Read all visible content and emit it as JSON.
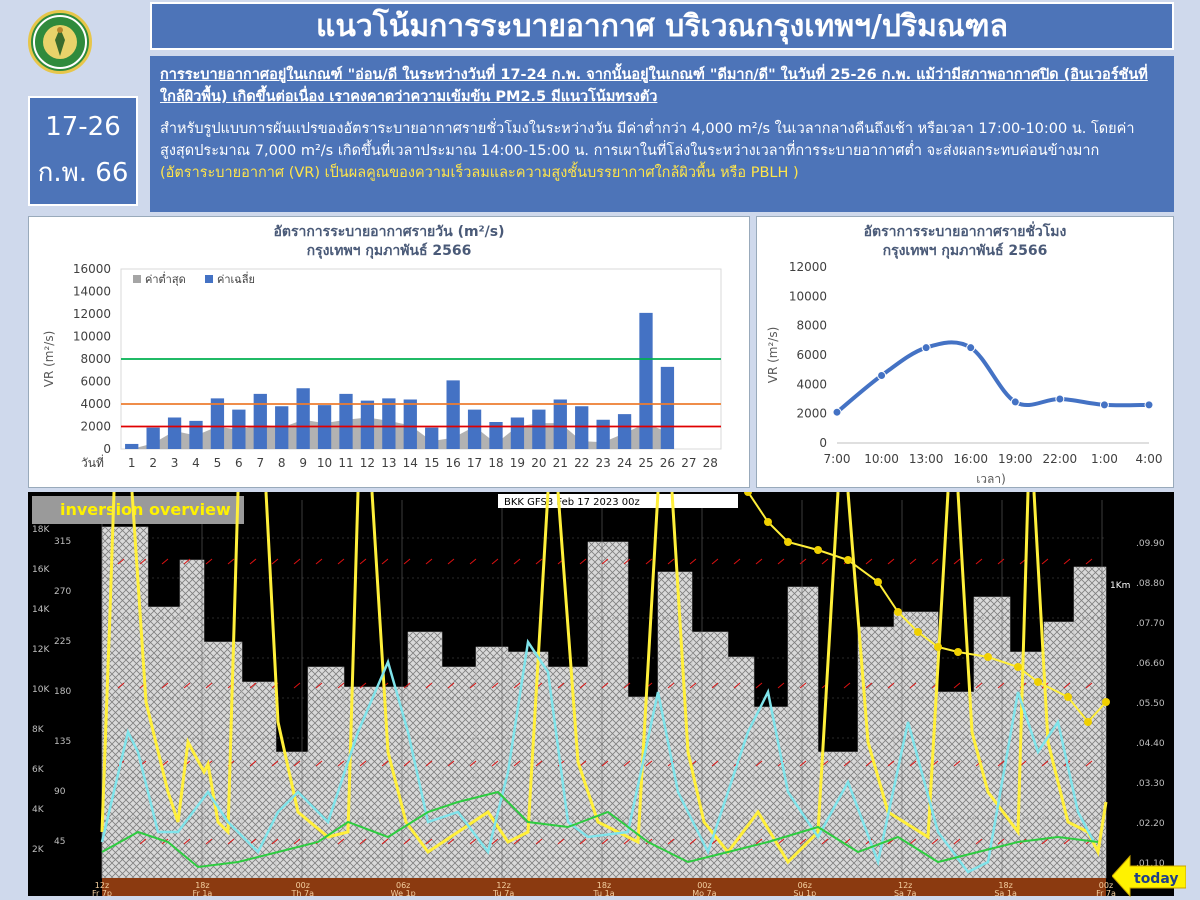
{
  "header": {
    "title": "แนวโน้มการระบายอากาศ บริเวณกรุงเทพฯ/ปริมณฑล",
    "date_line1": "17-26",
    "date_line2": "ก.พ. 66",
    "logo_text": "กรมอุตุนิยมวิทยา METEOROLOGICAL DEPARTMENT"
  },
  "description": {
    "headline": "การระบายอากาศอยู่ในเกณฑ์ \"อ่อน/ดี ในระหว่างวันที่ 17-24 ก.พ. จากนั้นอยู่ในเกณฑ์ \"ดีมาก/ดี\" ในวันที่ 25-26 ก.พ. แม้ว่ามีสภาพอากาศปิด (อินเวอร์ชันที่ใกล้ผิวพื้น) เกิดขึ้นต่อเนื่อง เราคงคาดว่าความเข้มข้น PM2.5 มีแนวโน้มทรงตัว",
    "body": "สำหรับรูปแบบการผันแปรของอัตราระบายอากาศรายชั่วโมงในระหว่างวัน มีค่าต่ำกว่า 4,000 m²/s ในเวลากลางคืนถึงเช้า หรือเวลา 17:00-10:00 น. โดยค่าสูงสุดประมาณ 7,000 m²/s เกิดขึ้นที่เวลาประมาณ 14:00-15:00 น. การเผาในที่โล่งในระหว่างเวลาที่การระบายอากาศต่ำ จะส่งผลกระทบค่อนข้างมาก",
    "note": "(อัตราระบายอากาศ (VR) เป็นผลคูณของความเร็วลมและความสูงชั้นบรรยากาศใกล้ผิวพื้น หรือ PBLH )"
  },
  "colors": {
    "header_blue": "#4d74b8",
    "bar_avg": "#4472c4",
    "bar_min": "#a5a5a5",
    "line_green": "#00b050",
    "line_orange": "#ed7d31",
    "line_red": "#e00000",
    "line_hourly": "#4472c4",
    "inv_yellow": "#ffef3a",
    "inv_cyan": "#7fe3ea"
  },
  "chart_data": [
    {
      "type": "bar",
      "title": "อัตราการระบายอากาศรายวัน (m²/s)",
      "subtitle": "กรุงเทพฯ กุมภาพันธ์ 2566",
      "ylabel": "VR (m²/s)",
      "xprefix": "วันที่",
      "ylim": [
        0,
        16000
      ],
      "yticks": [
        0,
        2000,
        4000,
        6000,
        8000,
        10000,
        12000,
        14000,
        16000
      ],
      "categories": [
        "1",
        "2",
        "3",
        "4",
        "5",
        "6",
        "7",
        "8",
        "9",
        "10",
        "11",
        "12",
        "13",
        "14",
        "15",
        "16",
        "17",
        "18",
        "19",
        "20",
        "21",
        "22",
        "23",
        "24",
        "25",
        "26",
        "27",
        "28"
      ],
      "series": [
        {
          "name": "ค่าต่ำสุด",
          "type": "area",
          "values": [
            0,
            500,
            1600,
            1200,
            2000,
            1700,
            2200,
            1900,
            2600,
            2300,
            2600,
            2800,
            2500,
            2100,
            700,
            1000,
            2000,
            500,
            2000,
            2300,
            2300,
            700,
            600,
            1400,
            2300,
            1500,
            null,
            null
          ]
        },
        {
          "name": "ค่าเฉลี่ย",
          "type": "bar",
          "values": [
            450,
            1900,
            2800,
            2500,
            4500,
            3500,
            4900,
            3800,
            5400,
            3900,
            4900,
            4300,
            4500,
            4400,
            1900,
            6100,
            3500,
            2400,
            2800,
            3500,
            4400,
            3800,
            2600,
            3100,
            12100,
            7300,
            null,
            null
          ]
        }
      ],
      "reference_lines": [
        {
          "value": 8000,
          "color": "#00b050"
        },
        {
          "value": 4000,
          "color": "#ed7d31"
        },
        {
          "value": 2000,
          "color": "#e00000"
        }
      ],
      "legend": "top-left",
      "grid": false
    },
    {
      "type": "line",
      "title": "อัตราการระบายอากาศรายชั่วโมง",
      "subtitle": "กรุงเทพฯ กุมภาพันธ์ 2566",
      "ylabel": "VR (m²/s)",
      "xlabel": "เวลา)",
      "ylim": [
        0,
        12000
      ],
      "yticks": [
        0,
        2000,
        4000,
        6000,
        8000,
        10000,
        12000
      ],
      "x": [
        "7:00",
        "10:00",
        "13:00",
        "16:00",
        "19:00",
        "22:00",
        "1:00",
        "4:00"
      ],
      "series": [
        {
          "values": [
            2100,
            4600,
            6500,
            6500,
            2800,
            3000,
            2600,
            2600
          ]
        }
      ],
      "grid": false
    },
    {
      "type": "line",
      "title": "inversion overview",
      "header_text": "BKK GFS3 Feb 17 2023 00z",
      "left_axis_k": [
        "18K",
        "16K",
        "14K",
        "12K",
        "10K",
        "8K",
        "6K",
        "4K",
        "2K"
      ],
      "left_axis_deg": [
        "315",
        "270",
        "225",
        "180",
        "135",
        "90",
        "45"
      ],
      "right_axis": [
        ".09.90",
        ".08.80",
        ".07.70",
        ".06.60",
        ".05.50",
        ".04.40",
        ".03.30",
        ".02.20",
        ".01.10"
      ],
      "right_label": "1Km",
      "time_labels": [
        {
          "top": "12z",
          "bottom": "Fr 7p"
        },
        {
          "top": "18z",
          "bottom": "Fr 1a"
        },
        {
          "top": "00z",
          "bottom": "Th 7a"
        },
        {
          "top": "06z",
          "bottom": "We 1p"
        },
        {
          "top": "12z",
          "bottom": "Tu 7a"
        },
        {
          "top": "18z",
          "bottom": "Tu 1a"
        },
        {
          "top": "00z",
          "bottom": "Mo 7a"
        },
        {
          "top": "06z",
          "bottom": "Su 1p"
        },
        {
          "top": "12z",
          "bottom": "Sa 7a"
        },
        {
          "top": "18z",
          "bottom": "Sa 1a"
        },
        {
          "top": "00z",
          "bottom": "Fr 7a"
        }
      ],
      "today_label": "today"
    }
  ]
}
